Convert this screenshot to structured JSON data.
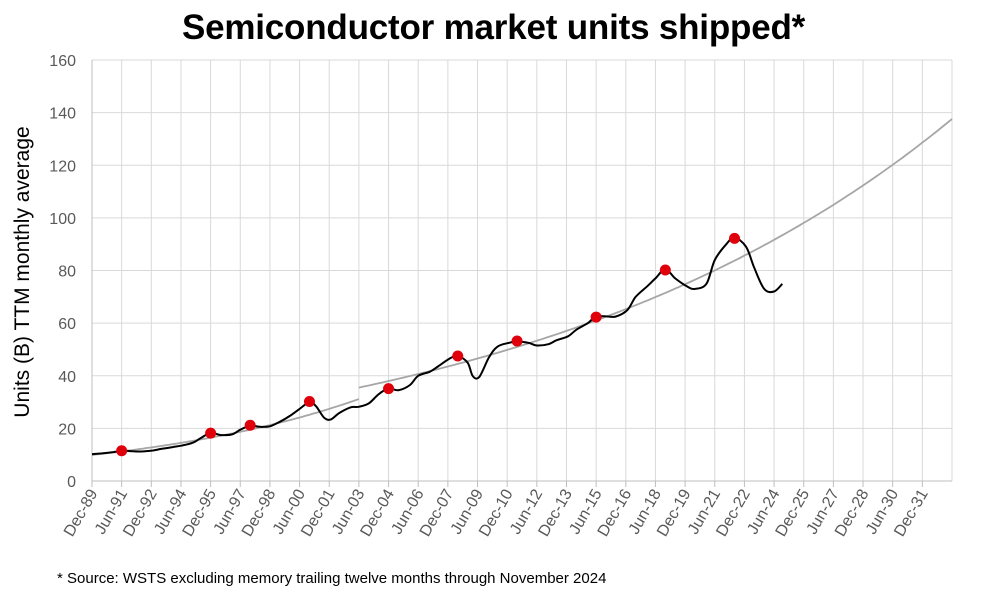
{
  "title": "Semiconductor market units shipped*",
  "footnote": "* Source: WSTS excluding memory trailing twelve months through November 2024",
  "colors": {
    "actual": "#000000",
    "trend": "#a6a6a6",
    "peak": "#e0000b",
    "grid": "#d9d9d9"
  },
  "chart_data": {
    "type": "line",
    "title": "Semiconductor market units shipped*",
    "ylabel": "Units (B) TTM monthly average",
    "xlabel": "",
    "ylim": [
      0,
      160
    ],
    "yticks": [
      0,
      20,
      40,
      60,
      80,
      100,
      120,
      140,
      160
    ],
    "xlim": [
      "1989-12",
      "2033-06"
    ],
    "xtick_labels": [
      "Dec-89",
      "Jun-91",
      "Dec-92",
      "Jun-94",
      "Dec-95",
      "Jun-97",
      "Dec-98",
      "Jun-00",
      "Dec-01",
      "Jun-03",
      "Dec-04",
      "Jun-06",
      "Dec-07",
      "Jun-09",
      "Dec-10",
      "Jun-12",
      "Dec-13",
      "Jun-15",
      "Dec-16",
      "Jun-18",
      "Dec-19",
      "Jun-21",
      "Dec-22",
      "Jun-24",
      "Dec-25",
      "Jun-27",
      "Dec-28",
      "Jun-30",
      "Dec-31"
    ],
    "grid": true,
    "legend": "none",
    "series": [
      {
        "role": "actual",
        "points": [
          [
            "1989-12",
            10.2
          ],
          [
            "1990-06",
            10.5
          ],
          [
            "1991-01",
            11.0
          ],
          [
            "1991-06",
            11.5
          ],
          [
            "1992-01",
            11.3
          ],
          [
            "1992-06",
            11.2
          ],
          [
            "1993-01",
            11.6
          ],
          [
            "1993-06",
            12.2
          ],
          [
            "1994-01",
            12.9
          ],
          [
            "1994-06",
            13.4
          ],
          [
            "1995-01",
            14.5
          ],
          [
            "1995-06",
            16.3
          ],
          [
            "1995-12",
            18.3
          ],
          [
            "1996-06",
            17.5
          ],
          [
            "1997-01",
            17.7
          ],
          [
            "1997-06",
            19.5
          ],
          [
            "1997-12",
            21.0
          ],
          [
            "1998-06",
            20.6
          ],
          [
            "1998-12",
            20.8
          ],
          [
            "1999-06",
            22.5
          ],
          [
            "1999-12",
            24.7
          ],
          [
            "2000-06",
            27.4
          ],
          [
            "2000-12",
            30.0
          ],
          [
            "2001-04",
            28.4
          ],
          [
            "2001-09",
            24.0
          ],
          [
            "2002-01",
            23.4
          ],
          [
            "2002-06",
            25.8
          ],
          [
            "2003-01",
            28.0
          ],
          [
            "2003-06",
            28.2
          ],
          [
            "2003-12",
            29.5
          ],
          [
            "2004-06",
            33.0
          ],
          [
            "2004-12",
            35.2
          ],
          [
            "2005-06",
            34.5
          ],
          [
            "2006-01",
            36.5
          ],
          [
            "2006-06",
            40.0
          ],
          [
            "2007-01",
            41.5
          ],
          [
            "2007-06",
            43.5
          ],
          [
            "2008-01",
            46.5
          ],
          [
            "2008-06",
            47.5
          ],
          [
            "2008-12",
            45.0
          ],
          [
            "2009-03",
            40.0
          ],
          [
            "2009-07",
            39.5
          ],
          [
            "2010-01",
            47.0
          ],
          [
            "2010-06",
            51.0
          ],
          [
            "2011-01",
            52.5
          ],
          [
            "2011-06",
            53.0
          ],
          [
            "2012-01",
            52.5
          ],
          [
            "2012-06",
            51.5
          ],
          [
            "2013-01",
            52.0
          ],
          [
            "2013-06",
            53.5
          ],
          [
            "2014-01",
            55.0
          ],
          [
            "2014-06",
            57.5
          ],
          [
            "2015-01",
            60.0
          ],
          [
            "2015-06",
            62.5
          ],
          [
            "2016-01",
            62.5
          ],
          [
            "2016-06",
            62.5
          ],
          [
            "2017-01",
            65.0
          ],
          [
            "2017-06",
            70.0
          ],
          [
            "2018-01",
            74.0
          ],
          [
            "2018-06",
            77.0
          ],
          [
            "2018-12",
            80.5
          ],
          [
            "2019-06",
            77.0
          ],
          [
            "2020-01",
            74.0
          ],
          [
            "2020-06",
            73.0
          ],
          [
            "2021-01",
            75.0
          ],
          [
            "2021-06",
            84.0
          ],
          [
            "2022-01",
            90.0
          ],
          [
            "2022-06",
            92.5
          ],
          [
            "2023-01",
            89.0
          ],
          [
            "2023-06",
            81.0
          ],
          [
            "2023-12",
            73.0
          ],
          [
            "2024-06",
            72.0
          ],
          [
            "2024-11",
            74.9
          ]
        ]
      },
      {
        "role": "trend",
        "segments": [
          {
            "from": "1989-12",
            "to": "2003-06",
            "y0": 9.9,
            "growth_per_year": 0.0886
          },
          {
            "from": "2003-06",
            "to": "2033-06",
            "y0": 35.5,
            "growth_per_year": 0.0462
          }
        ]
      },
      {
        "role": "peak",
        "points": [
          [
            "1991-06",
            11.5
          ],
          [
            "1995-12",
            18.2
          ],
          [
            "1997-12",
            21.2
          ],
          [
            "2000-12",
            30.2
          ],
          [
            "2004-12",
            35.1
          ],
          [
            "2008-06",
            47.5
          ],
          [
            "2011-06",
            53.2
          ],
          [
            "2015-06",
            62.3
          ],
          [
            "2018-12",
            80.2
          ],
          [
            "2022-06",
            92.2
          ]
        ]
      }
    ]
  }
}
